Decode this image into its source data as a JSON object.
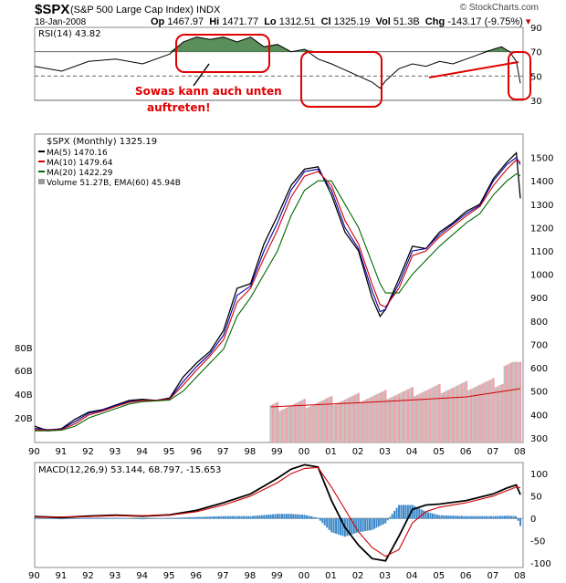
{
  "header": {
    "symbol": "$SPX",
    "name": "(S&P 500 Large Cap Index)",
    "exchange": "INDX",
    "date": "18-Jan-2008",
    "open_label": "Op",
    "open": "1467.97",
    "high_label": "Hi",
    "high": "1471.77",
    "low_label": "Lo",
    "low": "1312.51",
    "close_label": "Cl",
    "close": "1325.19",
    "vol_label": "Vol",
    "vol": "51.3B",
    "chg_label": "Chg",
    "chg": "-143.17 (-9.75%)",
    "brand": "© StockCharts.com"
  },
  "annotation": {
    "line1": "Sowas kann auch unten",
    "line2": "auftreten!",
    "color": "#e00000"
  },
  "chart_data": [
    {
      "type": "line",
      "panel": "rsi",
      "label": "RSI(14) 43.82",
      "ylim": [
        30,
        90
      ],
      "yticks": [
        30,
        50,
        70,
        90
      ],
      "reference_lines": [
        70,
        50,
        30
      ],
      "x": [
        1990,
        1991,
        1992,
        1993,
        1994,
        1995,
        1995.5,
        1996,
        1996.5,
        1997,
        1997.5,
        1998,
        1998.5,
        1999,
        1999.5,
        2000,
        2000.5,
        2001,
        2001.5,
        2002,
        2002.5,
        2002.8,
        2003,
        2003.5,
        2004,
        2004.5,
        2005,
        2005.5,
        2006,
        2006.5,
        2007,
        2007.3,
        2007.6,
        2007.85,
        2008
      ],
      "values": [
        58,
        54,
        62,
        64,
        60,
        68,
        78,
        82,
        80,
        82,
        78,
        82,
        74,
        76,
        70,
        72,
        64,
        60,
        55,
        50,
        45,
        40,
        46,
        56,
        60,
        58,
        62,
        60,
        64,
        68,
        72,
        74,
        70,
        62,
        44
      ],
      "fill_color": "#3d7a3d"
    },
    {
      "type": "line",
      "panel": "price",
      "legend": [
        "$SPX (Monthly) 1325.19",
        "MA(5) 1470.16",
        "MA(10) 1479.64",
        "MA(20) 1422.29",
        "Volume 51.27B, EMA(60) 45.94B"
      ],
      "x_ticks": [
        "90",
        "91",
        "92",
        "93",
        "94",
        "95",
        "96",
        "97",
        "98",
        "99",
        "00",
        "01",
        "02",
        "03",
        "04",
        "05",
        "06",
        "07",
        "08"
      ],
      "ylim": [
        280,
        1600
      ],
      "yticks": [
        300,
        400,
        500,
        600,
        700,
        800,
        900,
        1000,
        1100,
        1200,
        1300,
        1400,
        1500
      ],
      "volume_ticks": [
        "20B",
        "40B",
        "60B",
        "80B"
      ],
      "x": [
        1990,
        1990.5,
        1991,
        1991.5,
        1992,
        1992.5,
        1993,
        1993.5,
        1994,
        1994.5,
        1995,
        1995.5,
        1996,
        1996.5,
        1997,
        1997.5,
        1998,
        1998.5,
        1999,
        1999.5,
        2000,
        2000.5,
        2001,
        2001.5,
        2002,
        2002.5,
        2002.8,
        2003,
        2003.5,
        2004,
        2004.5,
        2005,
        2005.5,
        2006,
        2006.5,
        2007,
        2007.5,
        2007.85,
        2008
      ],
      "series": [
        {
          "name": "$SPX (Monthly)",
          "color": "#000000",
          "values": [
            350,
            330,
            340,
            380,
            410,
            420,
            440,
            460,
            465,
            460,
            470,
            560,
            620,
            670,
            760,
            940,
            960,
            1130,
            1250,
            1380,
            1450,
            1460,
            1340,
            1180,
            1100,
            900,
            820,
            850,
            980,
            1120,
            1110,
            1180,
            1220,
            1270,
            1300,
            1410,
            1480,
            1520,
            1325
          ]
        },
        {
          "name": "MA(5)",
          "color": "#0000aa",
          "values": [
            340,
            335,
            338,
            370,
            405,
            418,
            438,
            455,
            462,
            460,
            468,
            540,
            605,
            660,
            740,
            910,
            950,
            1100,
            1220,
            1360,
            1440,
            1450,
            1360,
            1200,
            1110,
            930,
            840,
            850,
            960,
            1100,
            1110,
            1170,
            1215,
            1260,
            1295,
            1400,
            1470,
            1500,
            1470
          ]
        },
        {
          "name": "MA(10)",
          "color": "#d00000",
          "values": [
            335,
            333,
            336,
            360,
            398,
            414,
            434,
            452,
            460,
            460,
            466,
            525,
            590,
            650,
            720,
            880,
            940,
            1070,
            1190,
            1330,
            1420,
            1440,
            1380,
            1230,
            1130,
            960,
            870,
            860,
            940,
            1080,
            1100,
            1160,
            1205,
            1250,
            1290,
            1380,
            1450,
            1490,
            1480
          ]
        },
        {
          "name": "MA(20)",
          "color": "#006600",
          "values": [
            330,
            330,
            333,
            350,
            385,
            405,
            425,
            445,
            455,
            458,
            462,
            500,
            560,
            620,
            680,
            820,
            900,
            1000,
            1100,
            1250,
            1360,
            1400,
            1400,
            1300,
            1200,
            1050,
            960,
            920,
            920,
            1000,
            1060,
            1120,
            1170,
            1220,
            1260,
            1340,
            1400,
            1430,
            1422
          ]
        }
      ]
    },
    {
      "type": "line",
      "panel": "macd",
      "label": "MACD(12,26,9) 53.144, 68.797, -15.653",
      "ylim": [
        -110,
        125
      ],
      "yticks": [
        -100,
        -50,
        0,
        50,
        100
      ],
      "x_ticks": [
        "90",
        "91",
        "92",
        "93",
        "94",
        "95",
        "96",
        "97",
        "98",
        "99",
        "00",
        "01",
        "02",
        "03",
        "04",
        "05",
        "06",
        "07",
        "08"
      ],
      "x": [
        1990,
        1991,
        1992,
        1993,
        1994,
        1995,
        1996,
        1997,
        1998,
        1999,
        1999.5,
        2000,
        2000.5,
        2001,
        2001.5,
        2002,
        2002.5,
        2003,
        2003.5,
        2004,
        2004.5,
        2005,
        2006,
        2007,
        2007.5,
        2007.85,
        2008
      ],
      "series": [
        {
          "name": "MACD",
          "color": "#000000",
          "values": [
            4,
            2,
            5,
            7,
            5,
            8,
            18,
            35,
            55,
            90,
            110,
            120,
            115,
            40,
            -20,
            -60,
            -90,
            -95,
            -40,
            20,
            30,
            32,
            40,
            55,
            68,
            75,
            53
          ]
        },
        {
          "name": "Signal",
          "color": "#d00000",
          "values": [
            3,
            3,
            4,
            6,
            6,
            7,
            15,
            30,
            50,
            80,
            100,
            112,
            114,
            70,
            20,
            -30,
            -65,
            -85,
            -70,
            -10,
            15,
            25,
            35,
            50,
            62,
            70,
            69
          ]
        }
      ],
      "histogram_color": "#3a87c8"
    }
  ]
}
